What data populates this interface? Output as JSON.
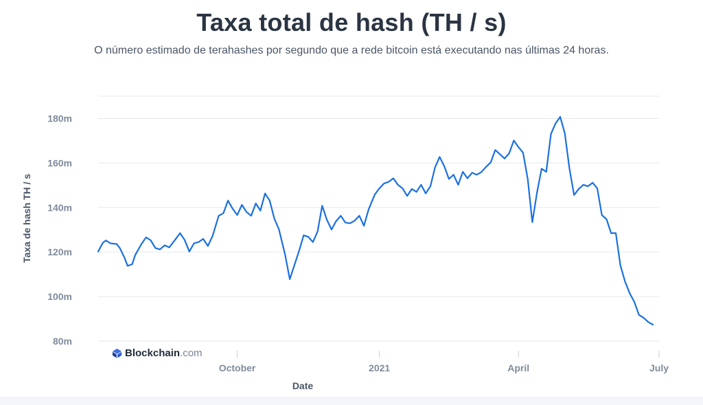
{
  "header": {
    "title": "Taxa total de hash (TH / s)",
    "subtitle": "O número estimado de terahashes por segundo que a rede bitcoin está executando nas últimas 24 horas."
  },
  "brand": {
    "name": "Blockchain",
    "tld": ".com"
  },
  "colors": {
    "line": "#1a6fe0",
    "grid": "#e4e7ec",
    "axis_text": "#7f8b9c",
    "label_text": "#4a5566"
  },
  "chart_data": {
    "type": "line",
    "title": "Taxa total de hash (TH / s)",
    "xlabel": "Date",
    "ylabel": "Taxa de hash TH / s",
    "y_ticks": [
      {
        "value": 80,
        "label": "80m"
      },
      {
        "value": 100,
        "label": "100m"
      },
      {
        "value": 120,
        "label": "120m"
      },
      {
        "value": 140,
        "label": "140m"
      },
      {
        "value": 160,
        "label": "160m"
      },
      {
        "value": 180,
        "label": "180m"
      }
    ],
    "x_ticks": [
      {
        "value": "2020-10-01",
        "label": "October"
      },
      {
        "value": "2021-01-01",
        "label": "2021"
      },
      {
        "value": "2021-04-01",
        "label": "April"
      },
      {
        "value": "2021-07-01",
        "label": "July"
      }
    ],
    "ylim": [
      80,
      190
    ],
    "xlim": [
      "2020-07-03",
      "2021-07-01"
    ],
    "grid": true,
    "series": [
      {
        "values": [
          [
            "2020-07-03",
            120.2
          ],
          [
            "2020-07-06",
            124.2
          ],
          [
            "2020-07-08",
            125.2
          ],
          [
            "2020-07-11",
            123.9
          ],
          [
            "2020-07-15",
            123.6
          ],
          [
            "2020-07-17",
            121.8
          ],
          [
            "2020-07-20",
            117.5
          ],
          [
            "2020-07-22",
            113.8
          ],
          [
            "2020-07-25",
            114.5
          ],
          [
            "2020-07-27",
            118.7
          ],
          [
            "2020-07-31",
            123.6
          ],
          [
            "2020-08-03",
            126.6
          ],
          [
            "2020-08-06",
            125.3
          ],
          [
            "2020-08-09",
            121.8
          ],
          [
            "2020-08-12",
            121.2
          ],
          [
            "2020-08-15",
            123.0
          ],
          [
            "2020-08-18",
            122.1
          ],
          [
            "2020-08-22",
            125.7
          ],
          [
            "2020-08-25",
            128.5
          ],
          [
            "2020-08-28",
            125.4
          ],
          [
            "2020-08-31",
            120.2
          ],
          [
            "2020-09-03",
            123.9
          ],
          [
            "2020-09-06",
            124.5
          ],
          [
            "2020-09-09",
            125.9
          ],
          [
            "2020-09-12",
            122.7
          ],
          [
            "2020-09-15",
            127.2
          ],
          [
            "2020-09-19",
            136.3
          ],
          [
            "2020-09-22",
            137.4
          ],
          [
            "2020-09-25",
            143.1
          ],
          [
            "2020-09-28",
            139.5
          ],
          [
            "2020-10-01",
            136.6
          ],
          [
            "2020-10-04",
            141.2
          ],
          [
            "2020-10-07",
            138.0
          ],
          [
            "2020-10-10",
            136.3
          ],
          [
            "2020-10-13",
            141.8
          ],
          [
            "2020-10-16",
            138.6
          ],
          [
            "2020-10-19",
            146.3
          ],
          [
            "2020-10-22",
            143.1
          ],
          [
            "2020-10-25",
            135.0
          ],
          [
            "2020-10-28",
            130.2
          ],
          [
            "2020-11-01",
            118.8
          ],
          [
            "2020-11-04",
            107.8
          ],
          [
            "2020-11-07",
            114.1
          ],
          [
            "2020-11-10",
            120.5
          ],
          [
            "2020-11-13",
            127.5
          ],
          [
            "2020-11-16",
            126.8
          ],
          [
            "2020-11-19",
            124.5
          ],
          [
            "2020-11-22",
            129.2
          ],
          [
            "2020-11-25",
            140.8
          ],
          [
            "2020-11-28",
            134.5
          ],
          [
            "2020-12-01",
            130.1
          ],
          [
            "2020-12-04",
            133.9
          ],
          [
            "2020-12-07",
            136.3
          ],
          [
            "2020-12-10",
            133.2
          ],
          [
            "2020-12-13",
            132.9
          ],
          [
            "2020-12-16",
            134.1
          ],
          [
            "2020-12-19",
            136.3
          ],
          [
            "2020-12-22",
            131.8
          ],
          [
            "2020-12-25",
            139.1
          ],
          [
            "2020-12-29",
            145.8
          ],
          [
            "2021-01-01",
            148.6
          ],
          [
            "2021-01-04",
            150.8
          ],
          [
            "2021-01-07",
            151.5
          ],
          [
            "2021-01-10",
            153.1
          ],
          [
            "2021-01-13",
            150.2
          ],
          [
            "2021-01-16",
            148.6
          ],
          [
            "2021-01-19",
            145.2
          ],
          [
            "2021-01-22",
            148.3
          ],
          [
            "2021-01-25",
            147.0
          ],
          [
            "2021-01-28",
            150.2
          ],
          [
            "2021-01-31",
            146.3
          ],
          [
            "2021-02-03",
            149.5
          ],
          [
            "2021-02-06",
            158.0
          ],
          [
            "2021-02-09",
            162.7
          ],
          [
            "2021-02-12",
            158.5
          ],
          [
            "2021-02-15",
            152.8
          ],
          [
            "2021-02-18",
            154.7
          ],
          [
            "2021-02-21",
            150.2
          ],
          [
            "2021-02-24",
            156.0
          ],
          [
            "2021-02-27",
            153.1
          ],
          [
            "2021-03-02",
            155.6
          ],
          [
            "2021-03-05",
            154.7
          ],
          [
            "2021-03-08",
            155.9
          ],
          [
            "2021-03-11",
            158.2
          ],
          [
            "2021-03-14",
            160.2
          ],
          [
            "2021-03-17",
            165.8
          ],
          [
            "2021-03-20",
            163.9
          ],
          [
            "2021-03-23",
            162.0
          ],
          [
            "2021-03-26",
            164.3
          ],
          [
            "2021-03-29",
            170.1
          ],
          [
            "2021-04-01",
            167.1
          ],
          [
            "2021-04-04",
            164.6
          ],
          [
            "2021-04-07",
            152.8
          ],
          [
            "2021-04-10",
            133.4
          ],
          [
            "2021-04-13",
            146.7
          ],
          [
            "2021-04-16",
            157.4
          ],
          [
            "2021-04-19",
            156.0
          ],
          [
            "2021-04-22",
            173.0
          ],
          [
            "2021-04-25",
            177.7
          ],
          [
            "2021-04-28",
            180.7
          ],
          [
            "2021-05-01",
            173.3
          ],
          [
            "2021-05-04",
            157.4
          ],
          [
            "2021-05-07",
            145.6
          ],
          [
            "2021-05-10",
            148.3
          ],
          [
            "2021-05-13",
            150.2
          ],
          [
            "2021-05-16",
            149.5
          ],
          [
            "2021-05-19",
            151.1
          ],
          [
            "2021-05-22",
            148.6
          ],
          [
            "2021-05-25",
            136.6
          ],
          [
            "2021-05-28",
            134.7
          ],
          [
            "2021-05-31",
            128.5
          ],
          [
            "2021-06-03",
            128.5
          ],
          [
            "2021-06-06",
            114.0
          ],
          [
            "2021-06-09",
            106.7
          ],
          [
            "2021-06-12",
            101.5
          ],
          [
            "2021-06-15",
            97.6
          ],
          [
            "2021-06-18",
            91.8
          ],
          [
            "2021-06-21",
            90.5
          ],
          [
            "2021-06-24",
            88.6
          ],
          [
            "2021-06-27",
            87.4
          ]
        ]
      }
    ]
  }
}
